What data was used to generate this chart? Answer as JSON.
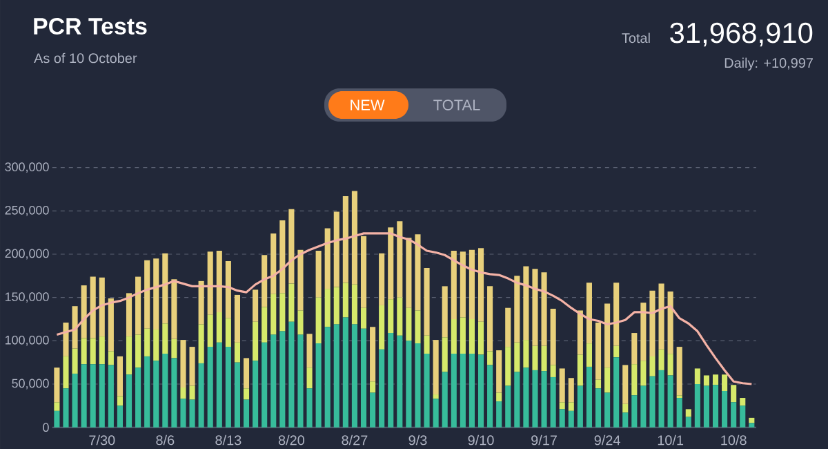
{
  "chart_data": {
    "type": "bar",
    "stacked": true,
    "title": "PCR Tests",
    "subtitle": "As of 10 October",
    "annotations": [
      "Total",
      "31,968,910",
      "Daily: +10,997",
      "NEW",
      "TOTAL"
    ],
    "categories": [
      null,
      null,
      null,
      null,
      null,
      "7/30",
      null,
      null,
      null,
      null,
      null,
      null,
      "8/6",
      null,
      null,
      null,
      null,
      null,
      null,
      "8/13",
      null,
      null,
      null,
      null,
      null,
      null,
      "8/20",
      null,
      null,
      null,
      null,
      null,
      null,
      "8/27",
      null,
      null,
      null,
      null,
      null,
      null,
      "9/3",
      null,
      null,
      null,
      null,
      null,
      null,
      "9/10",
      null,
      null,
      null,
      null,
      null,
      null,
      "9/17",
      null,
      null,
      null,
      null,
      null,
      null,
      "9/24",
      null,
      null,
      null,
      null,
      null,
      null,
      "10/1",
      null,
      null,
      null,
      null,
      null,
      null,
      "10/8",
      null,
      null
    ],
    "series": [
      {
        "color": "#37bc9b",
        "values": [
          19000,
          45000,
          62000,
          73000,
          73000,
          73000,
          72000,
          25000,
          61000,
          69000,
          82000,
          77000,
          85000,
          80000,
          33000,
          32000,
          74000,
          93000,
          98000,
          93000,
          75000,
          32000,
          77000,
          98000,
          107000,
          111000,
          122000,
          107000,
          45000,
          97000,
          116000,
          119000,
          127000,
          119000,
          114000,
          40000,
          90000,
          109000,
          106000,
          100000,
          97000,
          85000,
          33000,
          64000,
          85000,
          85000,
          85000,
          84000,
          72000,
          30000,
          48000,
          64000,
          69000,
          66000,
          65000,
          58000,
          21000,
          19000,
          48000,
          70000,
          45000,
          40000,
          81000,
          17000,
          37000,
          48000,
          59000,
          66000,
          60000,
          34000,
          12000,
          50000,
          48000,
          49000,
          42000,
          29000,
          25000,
          5000
        ]
      },
      {
        "color": "#d6e96b",
        "values": [
          10000,
          37000,
          29000,
          30000,
          30000,
          32000,
          16000,
          11000,
          44000,
          38000,
          32000,
          36000,
          35000,
          22000,
          13000,
          16000,
          45000,
          37000,
          35000,
          33000,
          23000,
          13000,
          45000,
          41000,
          47000,
          44000,
          44000,
          28000,
          24000,
          53000,
          44000,
          43000,
          40000,
          46000,
          24000,
          13000,
          51000,
          39000,
          44000,
          38000,
          38000,
          21000,
          5000,
          40000,
          40000,
          42000,
          40000,
          38000,
          16000,
          10000,
          45000,
          34000,
          32000,
          28000,
          29000,
          14000,
          8000,
          10000,
          36000,
          27000,
          10000,
          29000,
          13000,
          10000,
          36000,
          29000,
          23000,
          24000,
          25000,
          3000,
          9000,
          18000,
          12000,
          12000,
          19000,
          20000,
          9000,
          6000
        ]
      },
      {
        "color": "#e8d07c",
        "values": [
          40000,
          39000,
          49000,
          61000,
          71000,
          68000,
          61000,
          46000,
          50000,
          67000,
          79000,
          82000,
          81000,
          69000,
          55000,
          45000,
          50000,
          73000,
          71000,
          66000,
          55000,
          35000,
          37000,
          60000,
          70000,
          84000,
          86000,
          70000,
          39000,
          54000,
          70000,
          87000,
          100000,
          108000,
          83000,
          63000,
          60000,
          83000,
          88000,
          81000,
          88000,
          78000,
          63000,
          59000,
          79000,
          76000,
          80000,
          85000,
          75000,
          49000,
          45000,
          77000,
          85000,
          89000,
          85000,
          65000,
          39000,
          28000,
          51000,
          70000,
          66000,
          74000,
          73000,
          45000,
          36000,
          67000,
          76000,
          76000,
          72000,
          56000,
          0,
          0,
          0,
          0,
          0,
          0,
          0,
          0
        ]
      },
      {
        "type": "line",
        "color": "#f4b2a6",
        "values": [
          107000,
          110000,
          113000,
          125000,
          135000,
          141000,
          144000,
          146000,
          150000,
          155000,
          159000,
          162000,
          165000,
          169000,
          166000,
          163000,
          163000,
          163000,
          163000,
          162000,
          158000,
          156000,
          165000,
          171000,
          175000,
          183000,
          193000,
          200000,
          205000,
          209000,
          213000,
          216000,
          218000,
          221000,
          224000,
          224000,
          224000,
          224000,
          220000,
          217000,
          211000,
          204000,
          202000,
          199000,
          193000,
          187000,
          182000,
          179000,
          177000,
          176000,
          172000,
          167000,
          164000,
          160000,
          157000,
          152000,
          146000,
          138000,
          131000,
          125000,
          123000,
          119000,
          121000,
          124000,
          133000,
          133000,
          132000,
          137000,
          140000,
          126000,
          120000,
          111000,
          95000,
          80000,
          66000,
          53000,
          51000,
          50000
        ]
      }
    ],
    "ylim": [
      0,
      300000
    ],
    "yticks": [
      0,
      {
        "value": 50000,
        "label": "50,000"
      },
      {
        "value": 100000,
        "label": "100,000"
      },
      {
        "value": 150000,
        "label": "150,000"
      },
      {
        "value": 200000,
        "label": "200,000"
      },
      {
        "value": 250000,
        "label": "250,000"
      },
      {
        "value": 300000,
        "label": "300,000"
      }
    ],
    "grid": "y"
  }
}
